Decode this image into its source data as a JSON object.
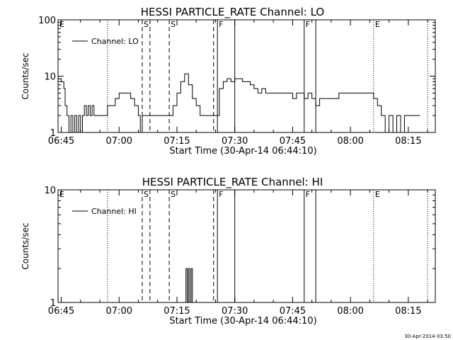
{
  "footer": {
    "timestamp": "30-Apr-2014 03:50"
  },
  "chart_data": [
    {
      "type": "line",
      "title": "HESSI PARTICLE_RATE Channel: LO",
      "xlabel": "Start Time (30-Apr-14 06:44:10)",
      "ylabel": "Counts/sec",
      "yscale": "log",
      "ylim": [
        1,
        100
      ],
      "xlim": [
        "06:44:10",
        "08:22:00"
      ],
      "y_ticks": [
        "1",
        "10",
        "100"
      ],
      "x_ticks": [
        "06:45",
        "07:00",
        "07:15",
        "07:30",
        "07:45",
        "08:00",
        "08:15"
      ],
      "legend": {
        "placement": "top-left",
        "entries": [
          "Channel: LO"
        ]
      },
      "markers": [
        {
          "label": "E",
          "time": "06:44:10",
          "style": "dotted"
        },
        {
          "label": "",
          "time": "06:57:00",
          "style": "dotted"
        },
        {
          "label": "S",
          "time": "07:06:00",
          "style": "dashed"
        },
        {
          "label": "",
          "time": "07:08:00",
          "style": "dashed"
        },
        {
          "label": "S",
          "time": "07:13:00",
          "style": "dashed"
        },
        {
          "label": "",
          "time": "07:24:30",
          "style": "dashed"
        },
        {
          "label": "F",
          "time": "07:25:30",
          "style": "solid"
        },
        {
          "label": "",
          "time": "07:30:00",
          "style": "solid"
        },
        {
          "label": "F",
          "time": "07:48:00",
          "style": "solid"
        },
        {
          "label": "",
          "time": "07:51:00",
          "style": "solid"
        },
        {
          "label": "E",
          "time": "08:06:00",
          "style": "dotted"
        },
        {
          "label": "",
          "time": "08:20:00",
          "style": "dotted"
        }
      ],
      "series": [
        {
          "name": "Channel: LO",
          "x": [
            "06:44:10",
            "06:45:00",
            "06:45:40",
            "06:46:00",
            "06:46:30",
            "06:47:00",
            "06:47:30",
            "06:48:00",
            "06:48:30",
            "06:49:00",
            "06:49:30",
            "06:50:00",
            "06:50:30",
            "06:51:00",
            "06:51:30",
            "06:52:00",
            "06:52:30",
            "06:53:00",
            "06:53:30",
            "06:54:00",
            "06:55:00",
            "06:56:00",
            "06:57:00",
            "06:58:00",
            "06:59:00",
            "07:00:00",
            "07:01:00",
            "07:02:00",
            "07:03:00",
            "07:04:00",
            "07:05:00",
            "07:05:30",
            "07:06:00",
            "07:07:00",
            "07:08:00",
            "07:09:00",
            "07:10:00",
            "07:11:00",
            "07:12:00",
            "07:13:00",
            "07:14:00",
            "07:15:00",
            "07:16:00",
            "07:17:00",
            "07:18:00",
            "07:19:00",
            "07:20:00",
            "07:21:00",
            "07:22:00",
            "07:23:00",
            "07:24:00",
            "07:25:00",
            "07:26:00",
            "07:27:00",
            "07:28:00",
            "07:29:00",
            "07:30:00",
            "07:31:00",
            "07:32:00",
            "07:33:00",
            "07:34:00",
            "07:35:00",
            "07:36:00",
            "07:37:00",
            "07:38:00",
            "07:39:00",
            "07:40:00",
            "07:41:00",
            "07:42:00",
            "07:43:00",
            "07:44:00",
            "07:45:00",
            "07:46:00",
            "07:47:00",
            "07:48:00",
            "07:49:00",
            "07:50:00",
            "07:51:00",
            "07:52:00",
            "07:53:00",
            "07:55:00",
            "07:57:00",
            "07:59:00",
            "08:01:00",
            "08:03:00",
            "08:05:00",
            "08:06:00",
            "08:07:00",
            "08:08:00",
            "08:09:00",
            "08:10:00",
            "08:11:00",
            "08:12:00",
            "08:13:00",
            "08:14:00",
            "08:15:00",
            "08:16:00",
            "08:17:00",
            "08:18:00"
          ],
          "y": [
            9,
            8,
            6,
            3,
            2,
            1,
            2,
            1,
            2,
            1,
            2,
            1,
            2,
            3,
            2,
            3,
            2,
            3,
            2,
            2,
            2,
            2,
            3,
            3,
            4,
            5,
            5,
            5,
            4,
            3,
            2,
            1,
            2,
            2,
            2,
            2,
            2,
            2,
            2,
            2,
            3,
            5,
            8,
            11,
            7,
            4,
            3,
            2,
            2,
            2,
            2,
            2,
            6,
            8,
            9,
            8,
            9,
            9,
            8,
            8,
            7,
            6,
            5,
            6,
            5,
            5,
            5,
            5,
            5,
            5,
            5,
            4,
            5,
            5,
            4,
            5,
            4,
            3,
            4,
            4,
            4,
            5,
            5,
            5,
            5,
            5,
            4,
            3,
            2,
            1,
            2,
            1,
            2,
            1,
            2,
            2,
            2,
            2,
            2
          ]
        }
      ]
    },
    {
      "type": "line",
      "title": "HESSI PARTICLE_RATE Channel: HI",
      "xlabel": "Start Time (30-Apr-14 06:44:10)",
      "ylabel": "Counts/sec",
      "yscale": "log",
      "ylim": [
        1,
        10
      ],
      "xlim": [
        "06:44:10",
        "08:22:00"
      ],
      "y_ticks": [
        "1",
        "10"
      ],
      "x_ticks": [
        "06:45",
        "07:00",
        "07:15",
        "07:30",
        "07:45",
        "08:00",
        "08:15"
      ],
      "legend": {
        "placement": "top-left",
        "entries": [
          "Channel: HI"
        ]
      },
      "markers": [
        {
          "label": "E",
          "time": "06:44:10",
          "style": "dotted"
        },
        {
          "label": "",
          "time": "06:57:00",
          "style": "dotted"
        },
        {
          "label": "S",
          "time": "07:06:00",
          "style": "dashed"
        },
        {
          "label": "",
          "time": "07:08:00",
          "style": "dashed"
        },
        {
          "label": "S",
          "time": "07:13:00",
          "style": "dashed"
        },
        {
          "label": "",
          "time": "07:24:30",
          "style": "dashed"
        },
        {
          "label": "F",
          "time": "07:25:30",
          "style": "solid"
        },
        {
          "label": "",
          "time": "07:30:00",
          "style": "solid"
        },
        {
          "label": "F",
          "time": "07:48:00",
          "style": "solid"
        },
        {
          "label": "",
          "time": "07:51:00",
          "style": "solid"
        },
        {
          "label": "E",
          "time": "08:06:00",
          "style": "dotted"
        },
        {
          "label": "",
          "time": "08:20:00",
          "style": "dotted"
        }
      ],
      "series": [
        {
          "name": "Channel: HI",
          "x": [
            "07:17:00",
            "07:17:20",
            "07:17:40",
            "07:18:00",
            "07:18:20",
            "07:18:40",
            "07:19:00"
          ],
          "y": [
            1,
            2,
            1,
            2,
            1,
            2,
            1
          ]
        }
      ]
    }
  ]
}
